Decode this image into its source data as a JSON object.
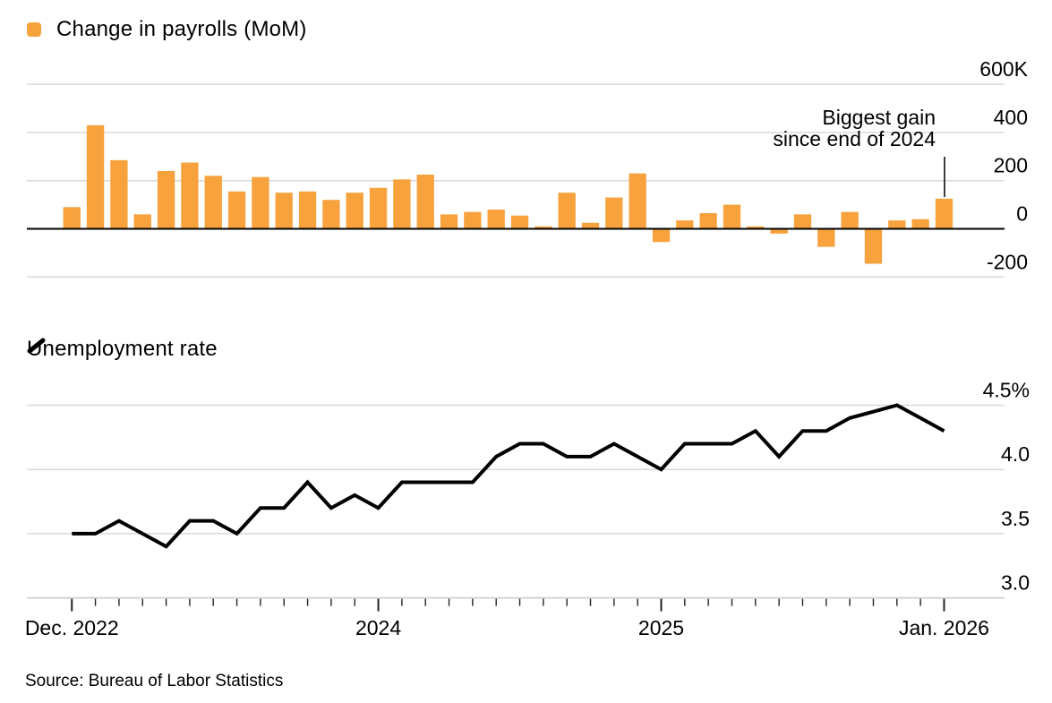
{
  "page": {
    "source": "Source: Bureau of Labor Statistics"
  },
  "colors": {
    "bar_orange": "#F7A23C",
    "line_black": "#000000",
    "gridline": "#d9d9d9",
    "axis_baseline": "#c9c9c9",
    "tick": "#222222",
    "zero_line": "#000000",
    "text": "#000000"
  },
  "chart_data": [
    {
      "type": "bar",
      "legend": "Change in payrolls (MoM)",
      "unit": "thousands of jobs",
      "categories": [
        "Dec 2022",
        "Jan 2023",
        "Feb 2023",
        "Mar 2023",
        "Apr 2023",
        "May 2023",
        "Jun 2023",
        "Jul 2023",
        "Aug 2023",
        "Sep 2023",
        "Oct 2023",
        "Nov 2023",
        "Dec 2023",
        "Jan 2024",
        "Feb 2024",
        "Mar 2024",
        "Apr 2024",
        "May 2024",
        "Jun 2024",
        "Jul 2024",
        "Aug 2024",
        "Sep 2024",
        "Oct 2024",
        "Nov 2024",
        "Dec 2024",
        "Jan 2025",
        "Feb 2025",
        "Mar 2025",
        "Apr 2025",
        "May 2025",
        "Jun 2025",
        "Jul 2025",
        "Aug 2025",
        "Sep 2025",
        "Oct 2025",
        "Nov 2025",
        "Dec 2025",
        "Jan 2026"
      ],
      "values": [
        90,
        430,
        285,
        60,
        240,
        275,
        220,
        155,
        215,
        150,
        155,
        120,
        150,
        170,
        205,
        225,
        60,
        70,
        80,
        55,
        10,
        150,
        25,
        130,
        230,
        -55,
        35,
        65,
        100,
        10,
        -20,
        60,
        -75,
        70,
        -145,
        35,
        40,
        125
      ],
      "ylim": [
        -200,
        600
      ],
      "ytick_values": [
        600,
        400,
        200,
        0,
        -200
      ],
      "ytick_labels": [
        "600K",
        "400",
        "200",
        "0",
        "-200"
      ],
      "grid": "horizontal",
      "legend_position": "top-left",
      "annotation": {
        "text_line1": "Biggest gain",
        "text_line2": "since end of 2024",
        "target_month": "Jan 2026"
      }
    },
    {
      "type": "line",
      "legend": "Unemployment rate",
      "unit": "percent",
      "categories": [
        "Dec 2022",
        "Jan 2023",
        "Feb 2023",
        "Mar 2023",
        "Apr 2023",
        "May 2023",
        "Jun 2023",
        "Jul 2023",
        "Aug 2023",
        "Sep 2023",
        "Oct 2023",
        "Nov 2023",
        "Dec 2023",
        "Jan 2024",
        "Feb 2024",
        "Mar 2024",
        "Apr 2024",
        "May 2024",
        "Jun 2024",
        "Jul 2024",
        "Aug 2024",
        "Sep 2024",
        "Oct 2024",
        "Nov 2024",
        "Dec 2024",
        "Jan 2025",
        "Feb 2025",
        "Mar 2025",
        "Apr 2025",
        "May 2025",
        "Jun 2025",
        "Jul 2025",
        "Aug 2025",
        "Sep 2025",
        "Oct 2025",
        "Nov 2025",
        "Dec 2025",
        "Jan 2026"
      ],
      "values": [
        3.5,
        3.5,
        3.6,
        3.5,
        3.4,
        3.6,
        3.6,
        3.5,
        3.7,
        3.7,
        3.9,
        3.7,
        3.8,
        3.7,
        3.9,
        3.9,
        3.9,
        3.9,
        4.1,
        4.2,
        4.2,
        4.1,
        4.1,
        4.2,
        4.1,
        4.0,
        4.2,
        4.2,
        4.2,
        4.3,
        4.1,
        4.3,
        4.3,
        4.4,
        4.45,
        4.5,
        4.4,
        4.3
      ],
      "ylim": [
        3.0,
        4.5
      ],
      "ytick_values": [
        4.5,
        4.0,
        3.5,
        3.0
      ],
      "ytick_labels": [
        "4.5%",
        "4.0",
        "3.5",
        "3.0"
      ],
      "xtick_labels": [
        "Dec. 2022",
        "2024",
        "2025",
        "Jan. 2026"
      ],
      "xtick_month_indices": [
        0,
        13,
        25,
        37
      ],
      "grid": "horizontal",
      "legend_position": "top-left"
    }
  ]
}
